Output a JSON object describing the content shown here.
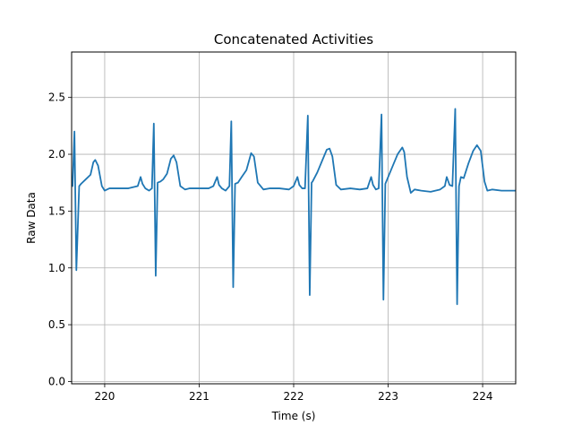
{
  "chart_data": {
    "type": "line",
    "title": "Concatenated Activities",
    "xlabel": "Time (s)",
    "ylabel": "Raw Data",
    "xlim": [
      219.65,
      224.35
    ],
    "ylim": [
      -0.02,
      2.9
    ],
    "grid": true,
    "line_color": "#1f77b4",
    "x_ticks": [
      220,
      221,
      222,
      223,
      224
    ],
    "y_ticks": [
      0.0,
      0.5,
      1.0,
      1.5,
      2.0,
      2.5
    ],
    "x_tick_labels": [
      "220",
      "221",
      "222",
      "223",
      "224"
    ],
    "y_tick_labels": [
      "0.0",
      "0.5",
      "1.0",
      "1.5",
      "2.0",
      "2.5"
    ],
    "series": [
      {
        "name": "",
        "x": [
          219.65,
          219.66,
          219.68,
          219.7,
          219.73,
          219.75,
          219.8,
          219.85,
          219.88,
          219.9,
          219.93,
          219.97,
          220.0,
          220.05,
          220.15,
          220.25,
          220.35,
          220.38,
          220.4,
          220.43,
          220.47,
          220.5,
          220.52,
          220.54,
          220.56,
          220.59,
          220.62,
          220.66,
          220.7,
          220.73,
          220.76,
          220.8,
          220.85,
          220.9,
          221.0,
          221.1,
          221.15,
          221.19,
          221.21,
          221.24,
          221.28,
          221.32,
          221.34,
          221.36,
          221.38,
          221.41,
          221.45,
          221.5,
          221.55,
          221.58,
          221.62,
          221.68,
          221.75,
          221.85,
          221.95,
          222.0,
          222.04,
          222.06,
          222.09,
          222.12,
          222.15,
          222.17,
          222.19,
          222.2,
          222.25,
          222.3,
          222.35,
          222.38,
          222.41,
          222.45,
          222.5,
          222.6,
          222.7,
          222.78,
          222.82,
          222.84,
          222.87,
          222.9,
          222.93,
          222.95,
          222.97,
          222.99,
          223.05,
          223.1,
          223.15,
          223.17,
          223.2,
          223.24,
          223.28,
          223.35,
          223.45,
          223.55,
          223.6,
          223.62,
          223.65,
          223.68,
          223.71,
          223.73,
          223.75,
          223.77,
          223.8,
          223.85,
          223.9,
          223.94,
          223.98,
          224.02,
          224.05,
          224.1,
          224.2,
          224.35
        ],
        "y": [
          1.73,
          1.72,
          2.2,
          0.98,
          1.72,
          1.74,
          1.78,
          1.82,
          1.93,
          1.95,
          1.9,
          1.72,
          1.68,
          1.7,
          1.7,
          1.7,
          1.72,
          1.8,
          1.74,
          1.7,
          1.68,
          1.7,
          2.27,
          0.93,
          1.75,
          1.76,
          1.78,
          1.83,
          1.96,
          1.99,
          1.93,
          1.72,
          1.69,
          1.7,
          1.7,
          1.7,
          1.72,
          1.8,
          1.73,
          1.7,
          1.68,
          1.72,
          2.29,
          0.83,
          1.74,
          1.75,
          1.8,
          1.86,
          2.01,
          1.98,
          1.75,
          1.69,
          1.7,
          1.7,
          1.69,
          1.72,
          1.8,
          1.73,
          1.7,
          1.7,
          2.34,
          0.76,
          1.75,
          1.76,
          1.84,
          1.94,
          2.04,
          2.05,
          1.98,
          1.73,
          1.69,
          1.7,
          1.69,
          1.7,
          1.8,
          1.73,
          1.69,
          1.7,
          2.35,
          0.72,
          1.74,
          1.78,
          1.9,
          2.0,
          2.06,
          2.02,
          1.8,
          1.66,
          1.69,
          1.68,
          1.67,
          1.69,
          1.72,
          1.8,
          1.73,
          1.72,
          2.4,
          0.68,
          1.72,
          1.8,
          1.79,
          1.92,
          2.03,
          2.08,
          2.03,
          1.76,
          1.68,
          1.69,
          1.68,
          1.68
        ]
      }
    ]
  }
}
